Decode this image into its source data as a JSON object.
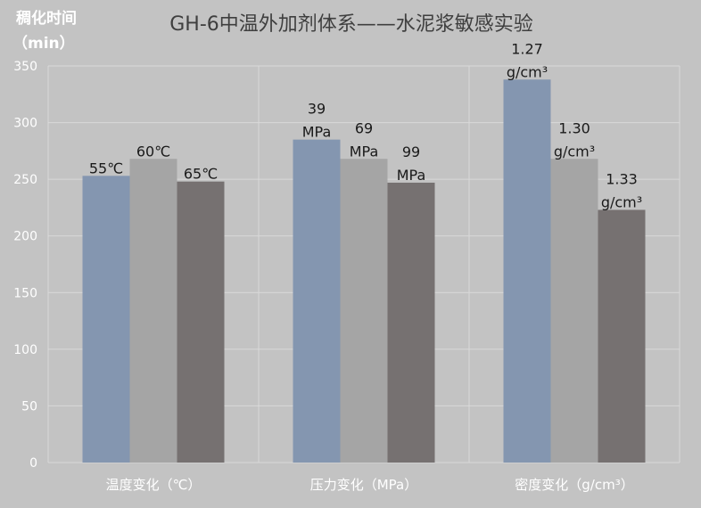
{
  "chart_data": {
    "type": "bar",
    "title": "GH-6中温外加剂体系——水泥浆敏感实验",
    "ylabel_lines": [
      "稠化时间",
      "（min）"
    ],
    "ylim": [
      0,
      350
    ],
    "yticks": [
      0,
      50,
      100,
      150,
      200,
      250,
      300,
      350
    ],
    "grid": true,
    "legend": "none",
    "categories": [
      "温度变化（℃）",
      "压力变化（MPa）",
      "密度变化（g/cm³）"
    ],
    "colors": [
      "#8496b0",
      "#a5a5a5",
      "#767171"
    ],
    "groups": [
      {
        "category": "温度变化（℃）",
        "bars": [
          {
            "value": 253,
            "label_lines": [
              "55℃"
            ]
          },
          {
            "value": 268,
            "label_lines": [
              "60℃"
            ]
          },
          {
            "value": 248,
            "label_lines": [
              "65℃"
            ]
          }
        ]
      },
      {
        "category": "压力变化（MPa）",
        "bars": [
          {
            "value": 285,
            "label_lines": [
              "39",
              "MPa"
            ]
          },
          {
            "value": 268,
            "label_lines": [
              "69",
              "MPa"
            ]
          },
          {
            "value": 247,
            "label_lines": [
              "99",
              "MPa"
            ]
          }
        ]
      },
      {
        "category": "密度变化（g/cm³）",
        "bars": [
          {
            "value": 338,
            "label_lines": [
              "1.27",
              "g/cm³"
            ]
          },
          {
            "value": 268,
            "label_lines": [
              "1.30",
              "g/cm³"
            ]
          },
          {
            "value": 223,
            "label_lines": [
              "1.33",
              "g/cm³"
            ]
          }
        ]
      }
    ]
  }
}
